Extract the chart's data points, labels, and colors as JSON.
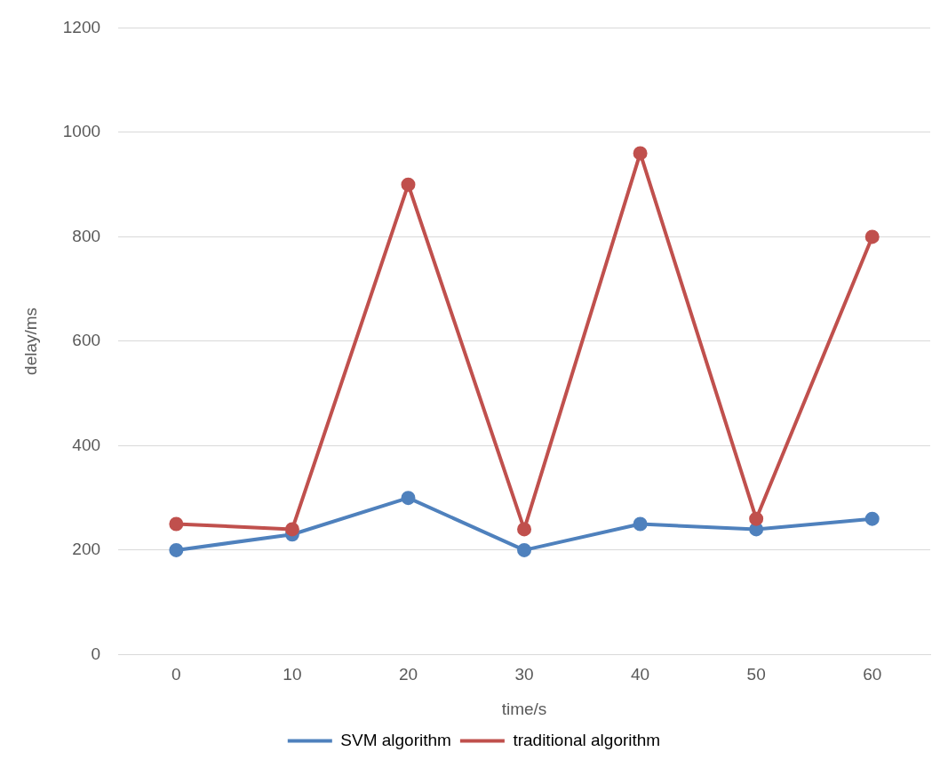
{
  "chart_data": {
    "type": "line",
    "xlabel": "time/s",
    "ylabel": "delay/ms",
    "categories": [
      "0",
      "10",
      "20",
      "30",
      "40",
      "50",
      "60"
    ],
    "series": [
      {
        "name": "SVM algorithm",
        "color": "#4f81bd",
        "values": [
          200,
          230,
          300,
          200,
          250,
          240,
          260
        ]
      },
      {
        "name": "traditional algorithm",
        "color": "#c0504d",
        "values": [
          250,
          240,
          900,
          240,
          960,
          260,
          800
        ]
      }
    ],
    "ylim": [
      0,
      1200
    ],
    "yticks": [
      0,
      200,
      400,
      600,
      800,
      1000,
      1200
    ],
    "grid": "y",
    "legend": "bottom",
    "marker": "circle",
    "line_style": "solid"
  }
}
